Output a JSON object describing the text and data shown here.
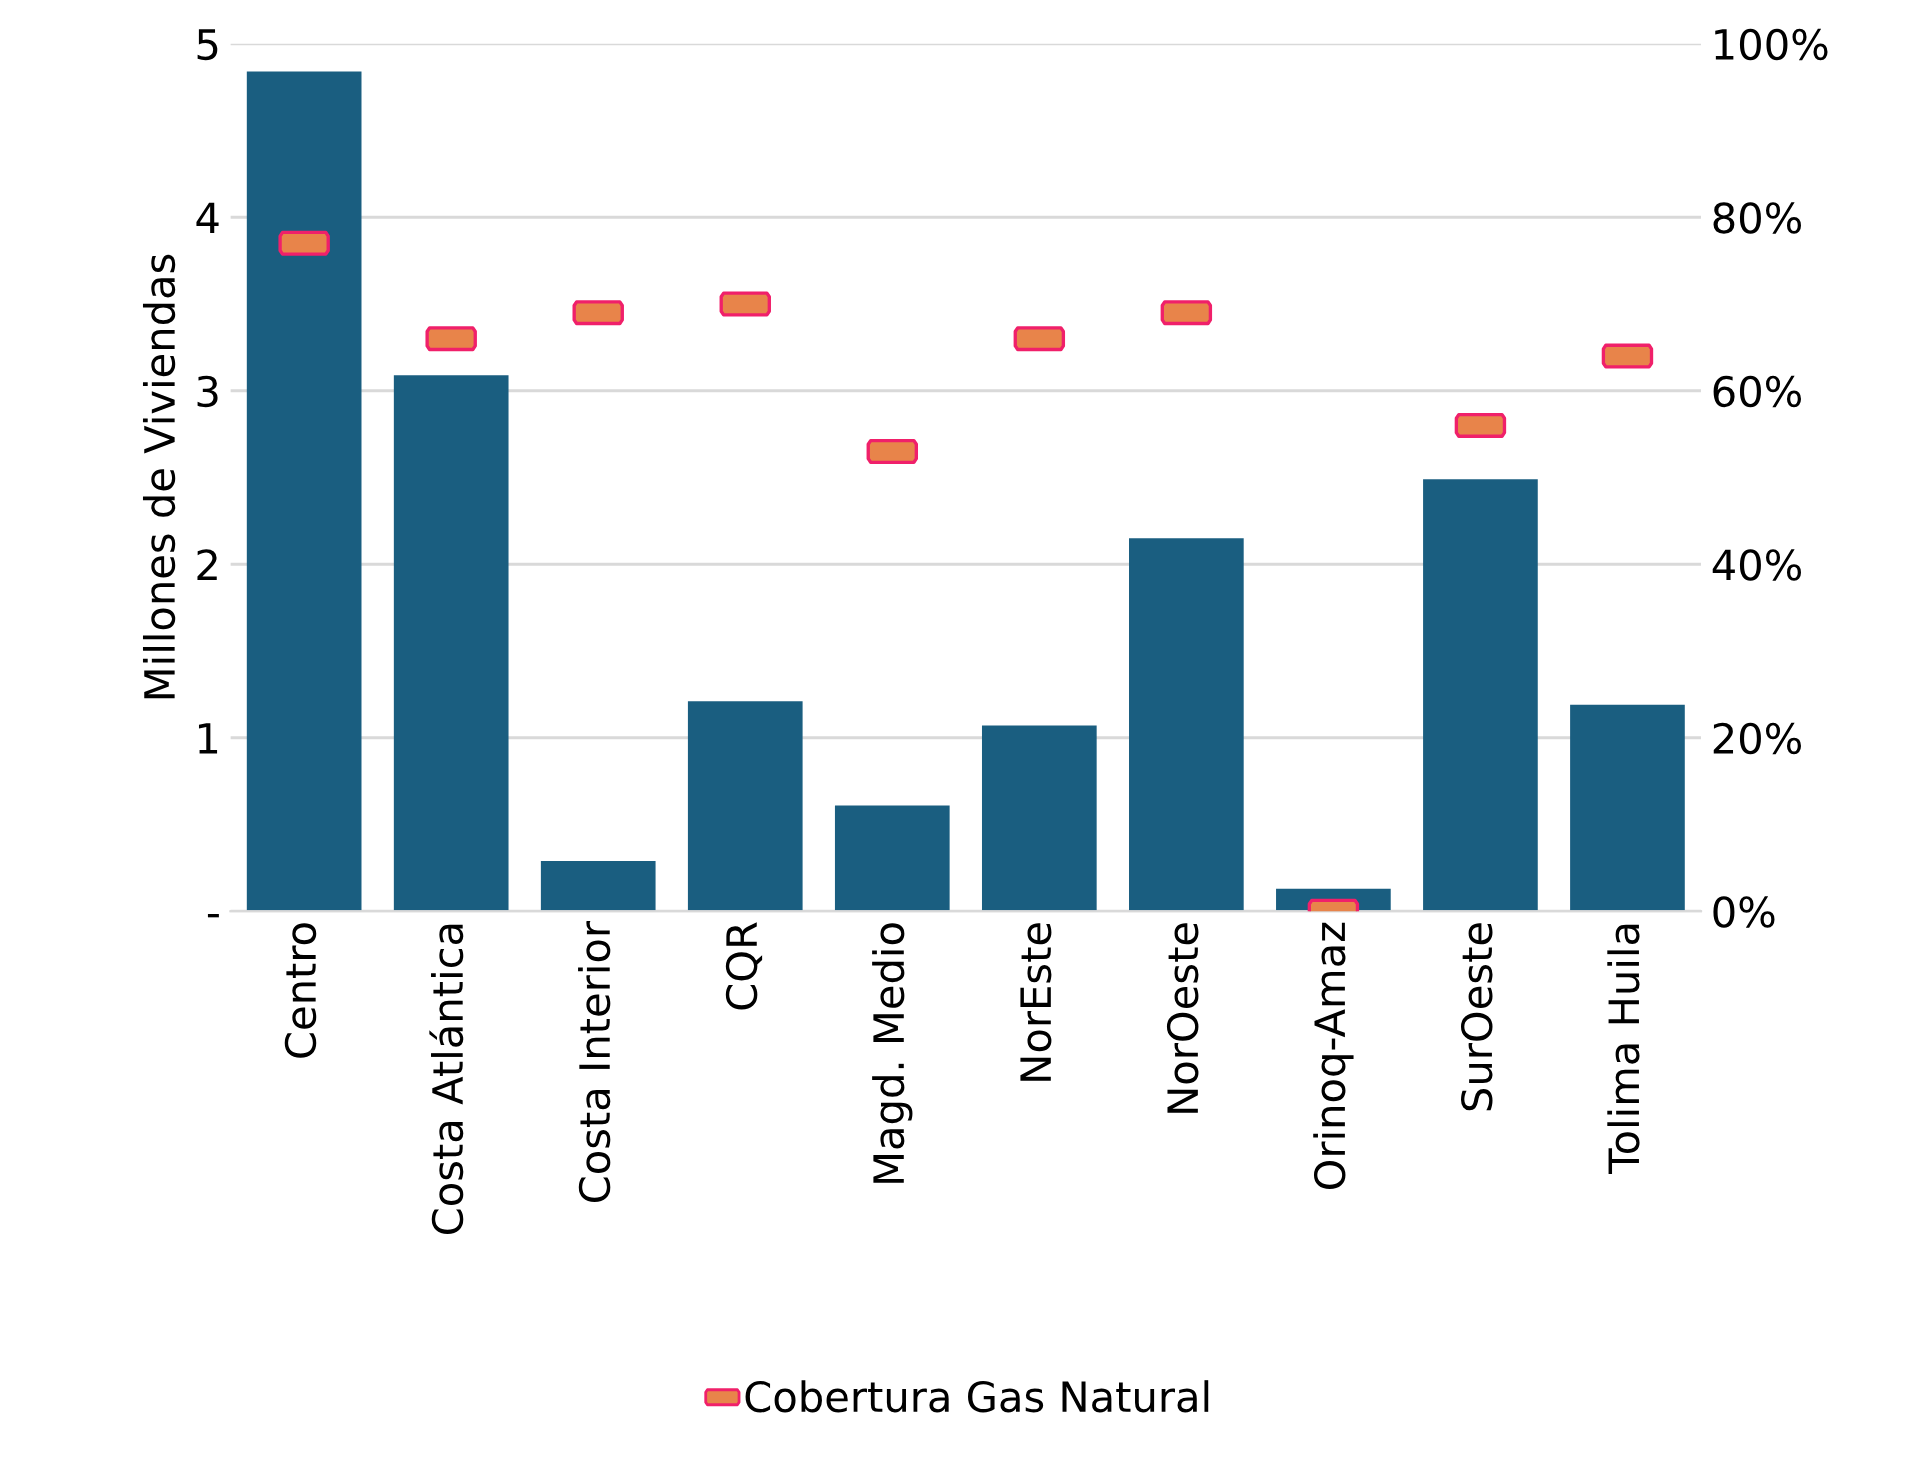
{
  "chart_data": {
    "type": "bar",
    "ylabel": "Millones de Viviendas",
    "categories": [
      "Centro",
      "Costa Atlántica",
      "Costa Interior",
      "CQR",
      "Magd. Medio",
      "NorEste",
      "NorOeste",
      "Orinoq-Amaz",
      "SurOeste",
      "Tolima Huila"
    ],
    "series": [
      {
        "color": "#1a5e80",
        "values": [
          4.84,
          3.09,
          0.29,
          1.21,
          0.61,
          1.07,
          2.15,
          0.13,
          2.49,
          1.19
        ]
      },
      {
        "type": "scatter",
        "axis": "y2",
        "name": "Cobertura Gas Natural",
        "color": "#e8844a",
        "values": [
          77,
          66,
          69,
          70,
          53,
          66,
          69,
          0,
          56,
          64
        ]
      }
    ],
    "ylim": [
      0,
      5
    ],
    "yticks": [
      {
        "value": 0,
        "label": "-"
      },
      1,
      2,
      3,
      4,
      5
    ],
    "y2lim": [
      0,
      100
    ],
    "y2ticks": [
      {
        "value": 0,
        "label": "0%"
      },
      {
        "value": 20,
        "label": "20%"
      },
      {
        "value": 40,
        "label": "40%"
      },
      {
        "value": 60,
        "label": "60%"
      },
      {
        "value": 80,
        "label": "80%"
      },
      {
        "value": 100,
        "label": "100%"
      }
    ],
    "grid": "y",
    "legend": "bottom"
  }
}
